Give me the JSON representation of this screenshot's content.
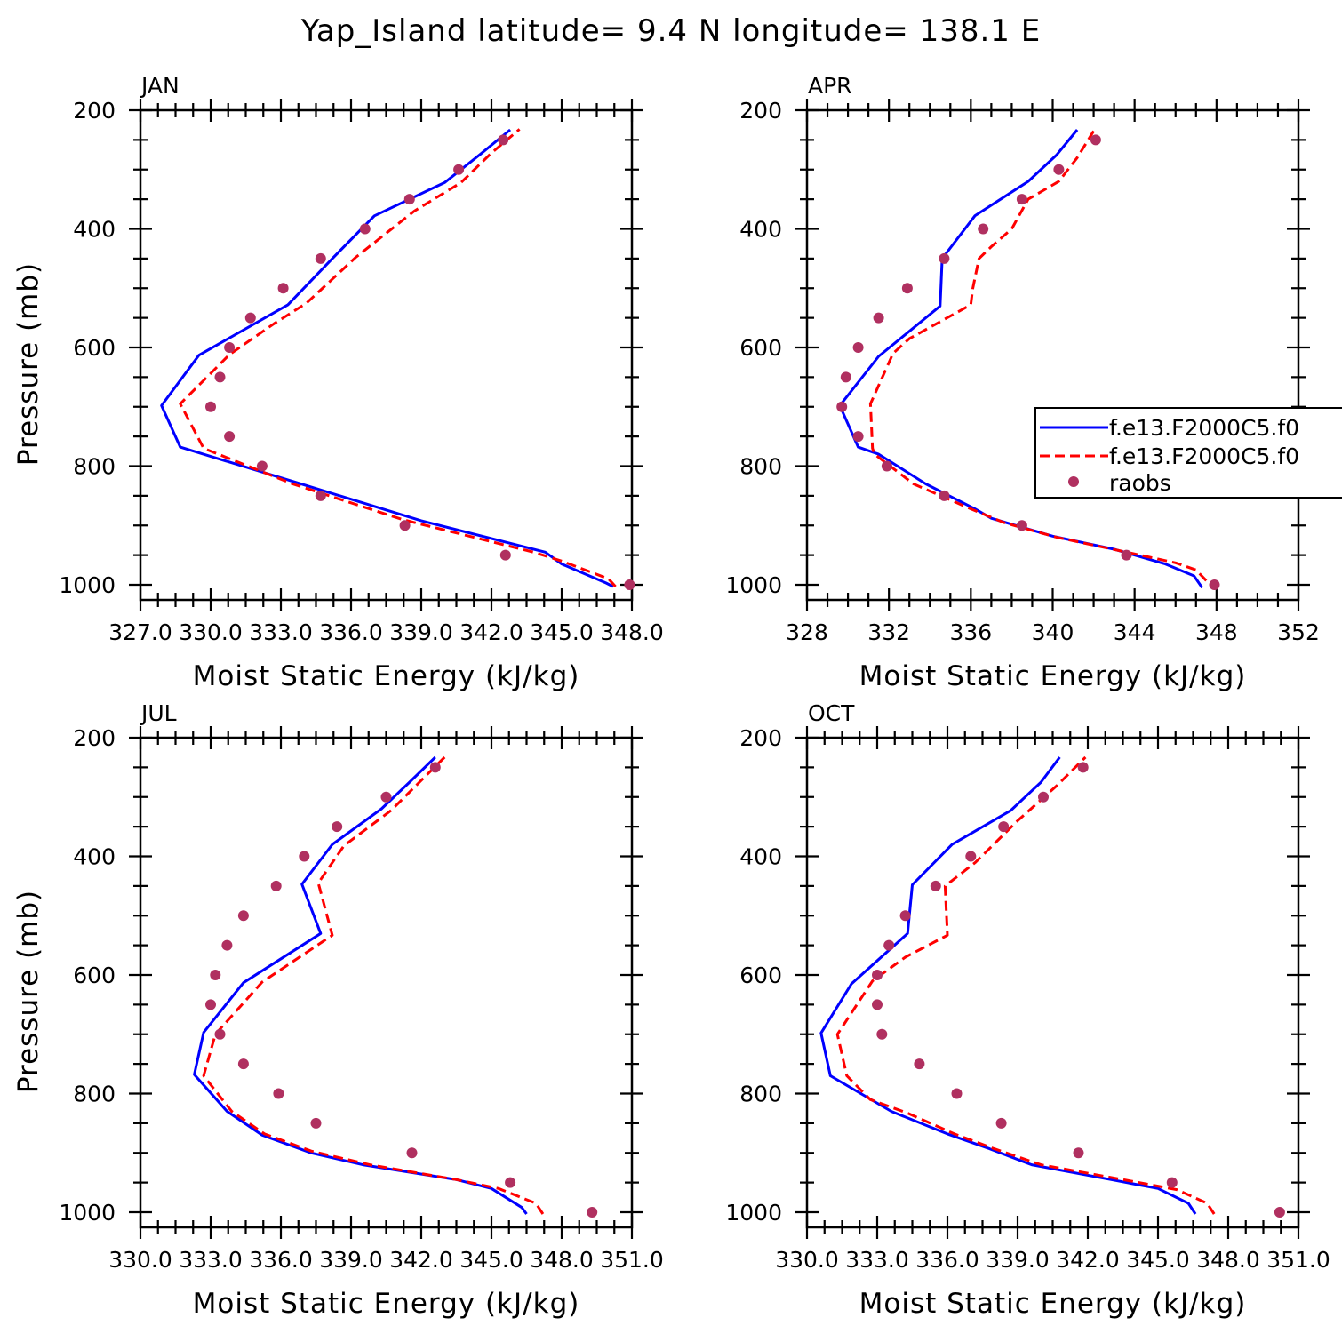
{
  "title": "Yap_Island  latitude= 9.4 N longitude= 138.1 E",
  "colors": {
    "model1": "#0000ff",
    "model2": "#ff0000",
    "raobs": "#b03060"
  },
  "legend": {
    "placement": "right edge of APR panel, clipped",
    "entries": [
      "f.e13.F2000C5.f0",
      "f.e13.F2000C5.f0",
      "raobs"
    ]
  },
  "chart_data": [
    {
      "type": "line",
      "panel_title": "JAN",
      "xlabel": "Moist Static Energy (kJ/kg)",
      "ylabel": "Pressure (mb)",
      "xlim": [
        327.0,
        348.0
      ],
      "ylim": [
        1000,
        200
      ],
      "xticks": [
        "327.0",
        "330.0",
        "333.0",
        "336.0",
        "339.0",
        "342.0",
        "345.0",
        "348.0"
      ],
      "xtick_values": [
        327,
        330,
        333,
        336,
        339,
        342,
        345,
        348
      ],
      "yticks": [
        "200",
        "400",
        "600",
        "800",
        "1000"
      ],
      "ytick_values": [
        200,
        400,
        600,
        800,
        1000
      ],
      "series": [
        {
          "name": "f.e13.F2000C5.f0",
          "style": "solid",
          "points": [
            [
              347.2,
              1003
            ],
            [
              346.9,
              997
            ],
            [
              345.0,
              965
            ],
            [
              344.3,
              945
            ],
            [
              339.0,
              892
            ],
            [
              333.7,
              828
            ],
            [
              328.7,
              768
            ],
            [
              327.9,
              698
            ],
            [
              329.5,
              613
            ],
            [
              333.3,
              528
            ],
            [
              335.2,
              450
            ],
            [
              337.0,
              378
            ],
            [
              340.0,
              322
            ],
            [
              341.5,
              275
            ],
            [
              342.8,
              233
            ]
          ]
        },
        {
          "name": "f.e13.F2000C5.f0",
          "style": "dashed",
          "points": [
            [
              347.3,
              1003
            ],
            [
              347.0,
              990
            ],
            [
              345.0,
              960
            ],
            [
              343.8,
              945
            ],
            [
              338.2,
              890
            ],
            [
              333.5,
              830
            ],
            [
              329.7,
              770
            ],
            [
              328.7,
              695
            ],
            [
              330.8,
              612
            ],
            [
              332.7,
              560
            ],
            [
              334.1,
              525
            ],
            [
              336.2,
              448
            ],
            [
              338.7,
              370
            ],
            [
              340.7,
              322
            ],
            [
              342.0,
              272
            ],
            [
              343.2,
              232
            ]
          ]
        }
      ],
      "raobs": [
        [
          347.9,
          1000
        ],
        [
          342.6,
          950
        ],
        [
          338.3,
          900
        ],
        [
          334.7,
          850
        ],
        [
          332.2,
          800
        ],
        [
          330.8,
          750
        ],
        [
          330.0,
          700
        ],
        [
          330.4,
          650
        ],
        [
          330.8,
          600
        ],
        [
          331.7,
          550
        ],
        [
          333.1,
          500
        ],
        [
          334.7,
          450
        ],
        [
          336.6,
          400
        ],
        [
          338.5,
          350
        ],
        [
          340.6,
          300
        ],
        [
          342.5,
          250
        ]
      ]
    },
    {
      "type": "line",
      "panel_title": "APR",
      "xlabel": "Moist Static Energy (kJ/kg)",
      "ylabel": "",
      "xlim": [
        328,
        352
      ],
      "ylim": [
        1000,
        200
      ],
      "xticks": [
        "328",
        "332",
        "336",
        "340",
        "344",
        "348",
        "352"
      ],
      "xtick_values": [
        328,
        332,
        336,
        340,
        344,
        348,
        352
      ],
      "yticks": [
        "200",
        "400",
        "600",
        "800",
        "1000"
      ],
      "ytick_values": [
        200,
        400,
        600,
        800,
        1000
      ],
      "series": [
        {
          "name": "f.e13.F2000C5.f0",
          "style": "solid",
          "points": [
            [
              347.3,
              1005
            ],
            [
              346.9,
              985
            ],
            [
              345.5,
              965
            ],
            [
              343.0,
              940
            ],
            [
              340.0,
              918
            ],
            [
              337.0,
              888
            ],
            [
              336.2,
              872
            ],
            [
              333.8,
              830
            ],
            [
              331.5,
              780
            ],
            [
              330.5,
              768
            ],
            [
              329.6,
              698
            ],
            [
              331.5,
              615
            ],
            [
              334.5,
              530
            ],
            [
              334.6,
              450
            ],
            [
              336.2,
              378
            ],
            [
              338.8,
              320
            ],
            [
              340.2,
              275
            ],
            [
              341.2,
              233
            ]
          ]
        },
        {
          "name": "f.e13.F2000C5.f0",
          "style": "dashed",
          "points": [
            [
              347.5,
              993
            ],
            [
              347.0,
              975
            ],
            [
              346.0,
              963
            ],
            [
              343.6,
              945
            ],
            [
              340.2,
              920
            ],
            [
              337.6,
              895
            ],
            [
              336.0,
              872
            ],
            [
              333.2,
              830
            ],
            [
              331.3,
              780
            ],
            [
              331.2,
              770
            ],
            [
              331.1,
              695
            ],
            [
              332.2,
              610
            ],
            [
              333.0,
              585
            ],
            [
              336.0,
              528
            ],
            [
              336.1,
              500
            ],
            [
              336.4,
              450
            ],
            [
              337.0,
              430
            ],
            [
              338.0,
              400
            ],
            [
              338.8,
              350
            ],
            [
              340.3,
              320
            ],
            [
              341.2,
              280
            ],
            [
              342.0,
              235
            ]
          ]
        }
      ],
      "raobs": [
        [
          347.9,
          1000
        ],
        [
          343.6,
          950
        ],
        [
          338.5,
          900
        ],
        [
          334.7,
          850
        ],
        [
          331.9,
          800
        ],
        [
          330.5,
          750
        ],
        [
          329.7,
          700
        ],
        [
          329.9,
          650
        ],
        [
          330.5,
          600
        ],
        [
          331.5,
          550
        ],
        [
          332.9,
          500
        ],
        [
          334.7,
          450
        ],
        [
          336.6,
          400
        ],
        [
          338.5,
          350
        ],
        [
          340.3,
          300
        ],
        [
          342.1,
          250
        ]
      ]
    },
    {
      "type": "line",
      "panel_title": "JUL",
      "xlabel": "Moist Static Energy (kJ/kg)",
      "ylabel": "Pressure (mb)",
      "xlim": [
        330.0,
        351.0
      ],
      "ylim": [
        1000,
        200
      ],
      "xticks": [
        "330.0",
        "333.0",
        "336.0",
        "339.0",
        "342.0",
        "345.0",
        "348.0",
        "351.0"
      ],
      "xtick_values": [
        330,
        333,
        336,
        339,
        342,
        345,
        348,
        351
      ],
      "yticks": [
        "200",
        "400",
        "600",
        "800",
        "1000"
      ],
      "ytick_values": [
        200,
        400,
        600,
        800,
        1000
      ],
      "series": [
        {
          "name": "f.e13.F2000C5.f0",
          "style": "solid",
          "points": [
            [
              346.5,
              1003
            ],
            [
              346.3,
              992
            ],
            [
              345.0,
              960
            ],
            [
              343.5,
              945
            ],
            [
              339.5,
              920
            ],
            [
              337.3,
              900
            ],
            [
              335.2,
              870
            ],
            [
              333.7,
              830
            ],
            [
              332.3,
              768
            ],
            [
              332.7,
              697
            ],
            [
              334.4,
              613
            ],
            [
              337.7,
              530
            ],
            [
              336.9,
              447
            ],
            [
              338.2,
              380
            ],
            [
              340.3,
              320
            ],
            [
              341.5,
              275
            ],
            [
              342.6,
              233
            ]
          ]
        },
        {
          "name": "f.e13.F2000C5.f0",
          "style": "dashed",
          "points": [
            [
              347.2,
              1003
            ],
            [
              346.9,
              985
            ],
            [
              345.3,
              960
            ],
            [
              343.5,
              945
            ],
            [
              339.8,
              920
            ],
            [
              337.3,
              897
            ],
            [
              335.3,
              868
            ],
            [
              333.9,
              830
            ],
            [
              332.7,
              770
            ],
            [
              333.2,
              700
            ],
            [
              335.2,
              612
            ],
            [
              338.2,
              533
            ],
            [
              337.6,
              445
            ],
            [
              338.7,
              382
            ],
            [
              340.7,
              323
            ],
            [
              342.0,
              272
            ],
            [
              343.0,
              233
            ]
          ]
        }
      ],
      "raobs": [
        [
          349.3,
          1000
        ],
        [
          345.8,
          950
        ],
        [
          341.6,
          900
        ],
        [
          337.5,
          850
        ],
        [
          335.9,
          800
        ],
        [
          334.4,
          750
        ],
        [
          333.4,
          700
        ],
        [
          333.0,
          650
        ],
        [
          333.2,
          600
        ],
        [
          333.7,
          550
        ],
        [
          334.4,
          500
        ],
        [
          335.8,
          450
        ],
        [
          337.0,
          400
        ],
        [
          338.4,
          350
        ],
        [
          340.5,
          300
        ],
        [
          342.6,
          250
        ]
      ]
    },
    {
      "type": "line",
      "panel_title": "OCT",
      "xlabel": "Moist Static Energy (kJ/kg)",
      "ylabel": "",
      "xlim": [
        330.0,
        351.0
      ],
      "ylim": [
        1000,
        200
      ],
      "xticks": [
        "330.0",
        "333.0",
        "336.0",
        "339.0",
        "342.0",
        "345.0",
        "348.0",
        "351.0"
      ],
      "xtick_values": [
        330,
        333,
        336,
        339,
        342,
        345,
        348,
        351
      ],
      "yticks": [
        "200",
        "400",
        "600",
        "800",
        "1000"
      ],
      "ytick_values": [
        200,
        400,
        600,
        800,
        1000
      ],
      "series": [
        {
          "name": "f.e13.F2000C5.f0",
          "style": "solid",
          "points": [
            [
              346.6,
              1003
            ],
            [
              346.3,
              985
            ],
            [
              345.0,
              960
            ],
            [
              343.0,
              945
            ],
            [
              339.6,
              920
            ],
            [
              337.8,
              893
            ],
            [
              336.0,
              868
            ],
            [
              333.6,
              830
            ],
            [
              331.0,
              770
            ],
            [
              330.6,
              698
            ],
            [
              331.9,
              615
            ],
            [
              334.3,
              530
            ],
            [
              334.5,
              448
            ],
            [
              336.2,
              380
            ],
            [
              338.7,
              323
            ],
            [
              340.0,
              275
            ],
            [
              340.8,
              233
            ]
          ]
        },
        {
          "name": "f.e13.F2000C5.f0",
          "style": "dashed",
          "points": [
            [
              347.4,
              1003
            ],
            [
              347.1,
              985
            ],
            [
              345.8,
              962
            ],
            [
              343.5,
              945
            ],
            [
              340.0,
              920
            ],
            [
              338.0,
              893
            ],
            [
              336.3,
              868
            ],
            [
              334.3,
              833
            ],
            [
              332.7,
              810
            ],
            [
              331.7,
              770
            ],
            [
              331.3,
              700
            ],
            [
              332.8,
              610
            ],
            [
              334.2,
              570
            ],
            [
              336.0,
              533
            ],
            [
              335.9,
              450
            ],
            [
              337.2,
              410
            ],
            [
              339.0,
              340
            ],
            [
              340.7,
              280
            ],
            [
              341.9,
              233
            ]
          ]
        }
      ],
      "raobs": [
        [
          350.2,
          1000
        ],
        [
          345.6,
          950
        ],
        [
          341.6,
          900
        ],
        [
          338.3,
          850
        ],
        [
          336.4,
          800
        ],
        [
          334.8,
          750
        ],
        [
          333.2,
          700
        ],
        [
          333.0,
          650
        ],
        [
          333.0,
          600
        ],
        [
          333.5,
          550
        ],
        [
          334.2,
          500
        ],
        [
          335.5,
          450
        ],
        [
          337.0,
          400
        ],
        [
          338.4,
          350
        ],
        [
          340.1,
          300
        ],
        [
          341.8,
          250
        ]
      ]
    }
  ]
}
